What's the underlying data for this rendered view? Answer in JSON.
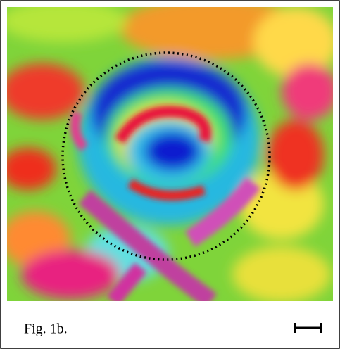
{
  "figure": {
    "caption": "Fig. 1b."
  }
}
